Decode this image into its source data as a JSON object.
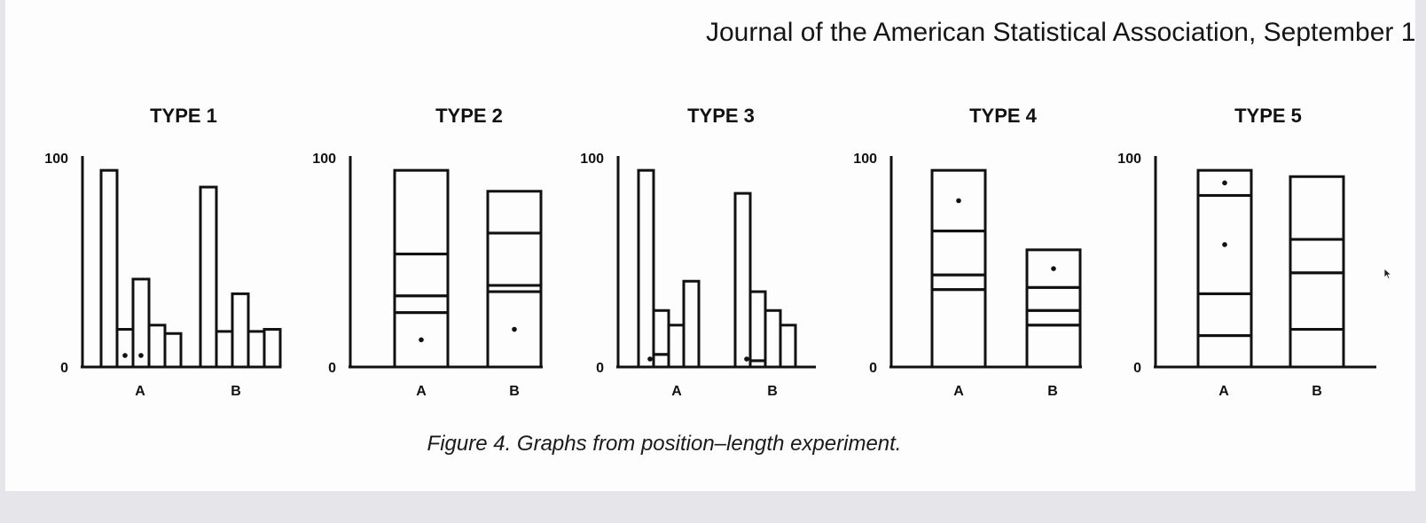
{
  "header_text": "Journal of the American Statistical Association, September 1",
  "caption": "Figure 4. Graphs from position–length experiment.",
  "chart_data": [
    {
      "type": "bar",
      "title": "TYPE 1",
      "layout": "grouped",
      "ylim": [
        0,
        100
      ],
      "y_ticks": [
        "0",
        "100"
      ],
      "groups": [
        {
          "label": "A",
          "values": [
            94,
            18,
            42,
            20,
            16
          ],
          "marked": [
            1,
            2
          ]
        },
        {
          "label": "B",
          "values": [
            86,
            17,
            35,
            17,
            18
          ],
          "marked": []
        }
      ]
    },
    {
      "type": "bar",
      "title": "TYPE 2",
      "layout": "stacked",
      "ylim": [
        0,
        100
      ],
      "y_ticks": [
        "0",
        "100"
      ],
      "groups": [
        {
          "label": "A",
          "segments": [
            26,
            8,
            20,
            40
          ],
          "marked": [
            0
          ]
        },
        {
          "label": "B",
          "segments": [
            36,
            3,
            25,
            20
          ],
          "marked": [
            0
          ]
        }
      ]
    },
    {
      "type": "bar",
      "title": "TYPE 3",
      "layout": "grouped-stacked",
      "ylim": [
        0,
        100
      ],
      "y_ticks": [
        "0",
        "100"
      ],
      "groups": [
        {
          "label": "A",
          "bars": [
            [
              94
            ],
            [
              6,
              21
            ],
            [
              20
            ],
            [
              41
            ]
          ],
          "marked_bar": 1
        },
        {
          "label": "B",
          "bars": [
            [
              83
            ],
            [
              3,
              33
            ],
            [
              27
            ],
            [
              20
            ]
          ],
          "marked_bar": 1
        }
      ]
    },
    {
      "type": "bar",
      "title": "TYPE 4",
      "layout": "stacked",
      "ylim": [
        0,
        100
      ],
      "y_ticks": [
        "0",
        "100"
      ],
      "groups": [
        {
          "label": "A",
          "segments": [
            37,
            7,
            21,
            29
          ],
          "marked": [
            3
          ]
        },
        {
          "label": "B",
          "segments": [
            20,
            7,
            11,
            18
          ],
          "marked": [
            3
          ]
        }
      ]
    },
    {
      "type": "bar",
      "title": "TYPE 5",
      "layout": "stacked",
      "ylim": [
        0,
        100
      ],
      "y_ticks": [
        "0",
        "100"
      ],
      "groups": [
        {
          "label": "A",
          "segments": [
            15,
            20,
            47,
            12
          ],
          "marked": [
            2,
            3
          ]
        },
        {
          "label": "B",
          "segments": [
            18,
            27,
            16,
            30
          ],
          "marked": []
        }
      ]
    }
  ]
}
